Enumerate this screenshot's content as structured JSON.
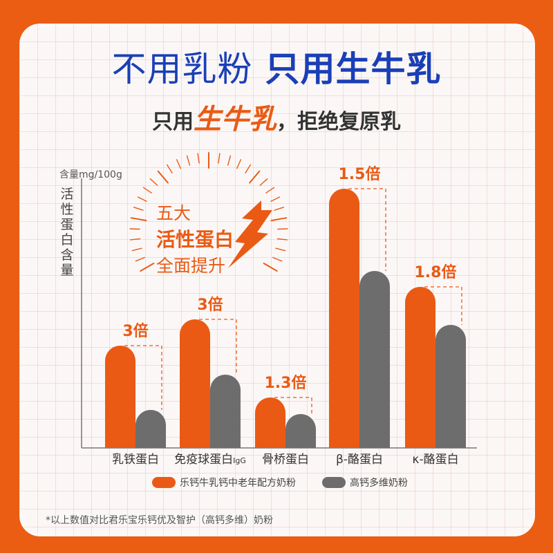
{
  "header": {
    "title_part1": "不用乳粉",
    "title_part2": "只用生牛乳",
    "subtitle_pre": "只用",
    "subtitle_highlight": "生牛乳",
    "subtitle_post": "，拒绝复原乳"
  },
  "badge": {
    "line1": "五大",
    "line2": "活性蛋白",
    "line3": "全面提升"
  },
  "legend": {
    "orange": "乐钙牛乳钙中老年配方奶粉",
    "gray": "高钙多维奶粉"
  },
  "footnote": "*以上数值对比君乐宝乐钙优及智护（高钙多维）奶粉",
  "colors": {
    "orange": "#ea5a14",
    "gray": "#6d6d6d",
    "title_blue": "#1a3fb6",
    "background": "#ea5d12"
  },
  "chart_data": {
    "type": "bar",
    "ylabel": "活性蛋白含量",
    "yunit": "含量mg/100g",
    "grid": false,
    "categories": [
      "乳铁蛋白",
      "免疫球蛋白IgG",
      "骨桥蛋白",
      "β-酪蛋白",
      "κ-酪蛋白"
    ],
    "category_labels": [
      {
        "main": "乳铁蛋白",
        "sub": ""
      },
      {
        "main": "免疫球蛋白",
        "sub": "IgG"
      },
      {
        "main": "骨桥蛋白",
        "sub": ""
      },
      {
        "main": "β-酪蛋白",
        "sub": ""
      },
      {
        "main": "κ-酪蛋白",
        "sub": ""
      }
    ],
    "multiplier_labels": [
      "3倍",
      "3倍",
      "1.3倍",
      "1.5倍",
      "1.8倍"
    ],
    "series": [
      {
        "name": "乐钙牛乳钙中老年配方奶粉",
        "values": [
          3,
          3,
          1.3,
          1.5,
          1.8
        ]
      },
      {
        "name": "高钙多维奶粉",
        "values": [
          1,
          1,
          1,
          1,
          1
        ]
      }
    ]
  }
}
